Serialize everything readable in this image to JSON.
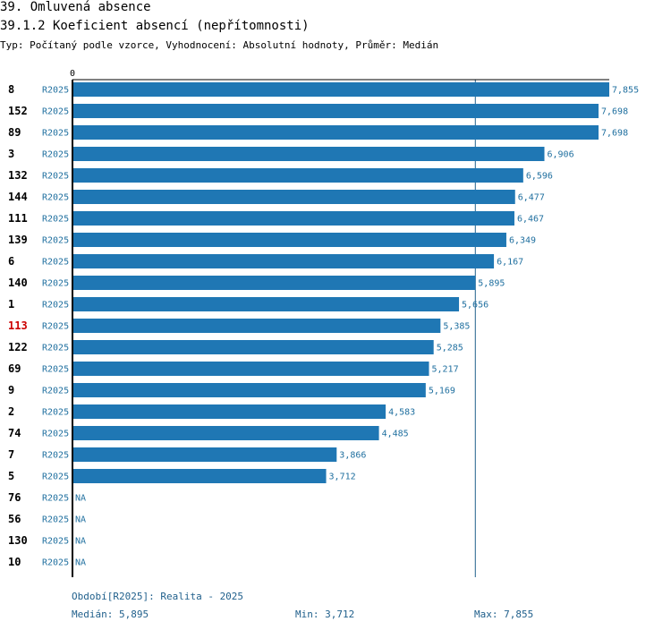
{
  "header": {
    "title": "39. Omluvená absence",
    "subtitle": "39.1.2 Koeficient absencí (nepřítomnosti)",
    "info": "Typ: Počítaný podle vzorce, Vyhodnocení: Absolutní hodnoty, Průměr: Medián"
  },
  "chart_data": {
    "type": "bar",
    "orientation": "horizontal",
    "axis_zero_label": "0",
    "xlim": [
      0,
      7.855
    ],
    "median": 5.895,
    "highlight_color": "#cc0000",
    "bar_color": "#1f77b4",
    "value_color": "#1f6f9f",
    "series_label_color": "#1f6f9f",
    "rows": [
      {
        "id": "8",
        "series": "R2025",
        "value": 7.855,
        "label": "7,855"
      },
      {
        "id": "152",
        "series": "R2025",
        "value": 7.698,
        "label": "7,698"
      },
      {
        "id": "89",
        "series": "R2025",
        "value": 7.698,
        "label": "7,698"
      },
      {
        "id": "3",
        "series": "R2025",
        "value": 6.906,
        "label": "6,906"
      },
      {
        "id": "132",
        "series": "R2025",
        "value": 6.596,
        "label": "6,596"
      },
      {
        "id": "144",
        "series": "R2025",
        "value": 6.477,
        "label": "6,477"
      },
      {
        "id": "111",
        "series": "R2025",
        "value": 6.467,
        "label": "6,467"
      },
      {
        "id": "139",
        "series": "R2025",
        "value": 6.349,
        "label": "6,349"
      },
      {
        "id": "6",
        "series": "R2025",
        "value": 6.167,
        "label": "6,167"
      },
      {
        "id": "140",
        "series": "R2025",
        "value": 5.895,
        "label": "5,895"
      },
      {
        "id": "1",
        "series": "R2025",
        "value": 5.656,
        "label": "5,656"
      },
      {
        "id": "113",
        "series": "R2025",
        "value": 5.385,
        "label": "5,385",
        "highlight": true
      },
      {
        "id": "122",
        "series": "R2025",
        "value": 5.285,
        "label": "5,285"
      },
      {
        "id": "69",
        "series": "R2025",
        "value": 5.217,
        "label": "5,217"
      },
      {
        "id": "9",
        "series": "R2025",
        "value": 5.169,
        "label": "5,169"
      },
      {
        "id": "2",
        "series": "R2025",
        "value": 4.583,
        "label": "4,583"
      },
      {
        "id": "74",
        "series": "R2025",
        "value": 4.485,
        "label": "4,485"
      },
      {
        "id": "7",
        "series": "R2025",
        "value": 3.866,
        "label": "3,866"
      },
      {
        "id": "5",
        "series": "R2025",
        "value": 3.712,
        "label": "3,712"
      },
      {
        "id": "76",
        "series": "R2025",
        "value": null,
        "label": "NA"
      },
      {
        "id": "56",
        "series": "R2025",
        "value": null,
        "label": "NA"
      },
      {
        "id": "130",
        "series": "R2025",
        "value": null,
        "label": "NA"
      },
      {
        "id": "10",
        "series": "R2025",
        "value": null,
        "label": "NA"
      }
    ]
  },
  "footer": {
    "period": "Období[R2025]: Realita - 2025",
    "median": "Medián: 5,895",
    "min": "Min: 3,712",
    "max": "Max: 7,855"
  }
}
